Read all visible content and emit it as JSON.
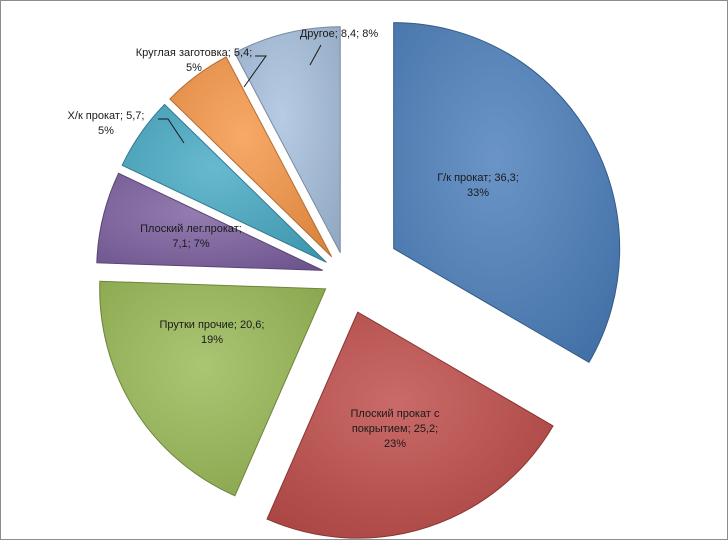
{
  "chart_data": {
    "type": "pie",
    "style": "exploded",
    "slices": [
      {
        "name": "Г/к прокат",
        "value": 36.3,
        "percent": "33%",
        "color": "#4a7ebb",
        "label_lines": [
          "Г/к прокат; 36,3;",
          "33%"
        ]
      },
      {
        "name": "Плоский прокат с покрытием",
        "value": 25.2,
        "percent": "23%",
        "color": "#be4b48",
        "label_lines": [
          "Плоский прокат с",
          "покрытием; 25,2;",
          "23%"
        ]
      },
      {
        "name": "Прутки прочие",
        "value": 20.6,
        "percent": "19%",
        "color": "#98b954",
        "label_lines": [
          "Прутки прочие; 20,6;",
          "19%"
        ]
      },
      {
        "name": "Плоский лег.прокат",
        "value": 7.1,
        "percent": "7%",
        "color": "#7d60a0",
        "label_lines": [
          "Плоский лег.прокат;",
          "7,1; 7%"
        ]
      },
      {
        "name": "Х/к прокат",
        "value": 5.7,
        "percent": "5%",
        "color": "#46aac5",
        "label_lines": [
          "Х/к прокат; 5,7;",
          "5%"
        ]
      },
      {
        "name": "Круглая заготовка",
        "value": 5.4,
        "percent": "5%",
        "color": "#f79646",
        "label_lines": [
          "Круглая заготовка; 5,4;",
          "5%"
        ]
      },
      {
        "name": "Другое",
        "value": 8.4,
        "percent": "8%",
        "color": "#a7c0de",
        "label_lines": [
          "Другое; 8,4; 8%"
        ]
      }
    ]
  }
}
